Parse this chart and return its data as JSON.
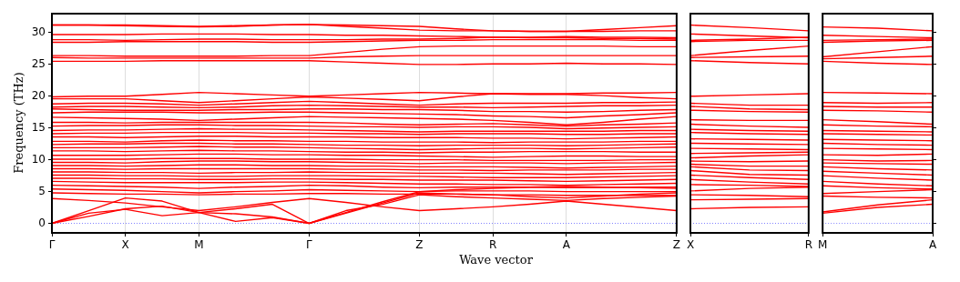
{
  "chart_data": [
    {
      "type": "line",
      "ylabel": "Frequency (THz)",
      "xlabel": "Wave vector",
      "color": "#ff0000",
      "grid": "x",
      "legend": false,
      "marker": "none",
      "line_style": "solid",
      "categories": [
        "Γ",
        null,
        "X",
        null,
        "M",
        null,
        null,
        "Γ",
        null,
        null,
        "Z",
        null,
        "R",
        null,
        "A",
        null,
        null,
        "Z"
      ],
      "ylim": [
        -1.5,
        33
      ],
      "yticks": [
        0,
        5,
        10,
        15,
        20,
        25,
        30
      ],
      "ref_lines": [
        {
          "axis": "y",
          "value": 0,
          "color": "#8080ff",
          "line_style": "dotted"
        }
      ],
      "series": [
        {
          "values": [
            31.2,
            31.2,
            31.1,
            31.0,
            30.9,
            31.0,
            31.2,
            31.3,
            31.2,
            31.1,
            31.0,
            30.6,
            30.3,
            30.2,
            30.2,
            30.5,
            30.8,
            31.1
          ]
        },
        {
          "values": [
            31.2,
            31.2,
            31.2,
            31.1,
            31.0,
            31.1,
            31.2,
            31.3,
            31.0,
            30.7,
            30.4,
            30.3,
            30.3,
            30.2,
            30.2,
            30.2,
            30.3,
            30.3
          ]
        },
        {
          "values": [
            29.7,
            29.7,
            29.7,
            29.8,
            29.8,
            29.8,
            29.7,
            29.7,
            29.6,
            29.6,
            29.5,
            29.4,
            29.3,
            29.3,
            29.4,
            29.3,
            29.3,
            29.2
          ]
        },
        {
          "values": [
            28.9,
            28.9,
            28.8,
            28.9,
            29.0,
            29.0,
            28.9,
            28.9,
            28.9,
            29.0,
            29.0,
            29.1,
            29.3,
            29.2,
            29.2,
            29.1,
            29.1,
            29.0
          ]
        },
        {
          "values": [
            28.5,
            28.5,
            28.6,
            28.6,
            28.6,
            28.6,
            28.5,
            28.5,
            28.6,
            28.7,
            28.8,
            28.8,
            28.9,
            28.9,
            28.9,
            28.9,
            28.8,
            28.8
          ]
        },
        {
          "values": [
            26.4,
            26.4,
            26.3,
            26.3,
            26.3,
            26.3,
            26.4,
            26.4,
            26.9,
            27.4,
            27.8,
            27.9,
            27.9,
            27.9,
            27.9,
            27.9,
            27.8,
            27.8
          ]
        },
        {
          "values": [
            26.1,
            26.0,
            26.0,
            26.0,
            26.0,
            26.0,
            26.0,
            26.0,
            26.2,
            26.3,
            26.4,
            26.4,
            26.4,
            26.4,
            26.4,
            26.4,
            26.4,
            26.4
          ]
        },
        {
          "values": [
            25.5,
            25.5,
            25.5,
            25.6,
            25.6,
            25.6,
            25.6,
            25.6,
            25.4,
            25.2,
            25.0,
            25.0,
            25.1,
            25.1,
            25.2,
            25.1,
            25.1,
            25.0
          ]
        },
        {
          "values": [
            19.9,
            20.0,
            20.0,
            20.3,
            20.6,
            20.4,
            20.2,
            20.0,
            20.2,
            20.4,
            20.6,
            20.5,
            20.4,
            20.4,
            20.4,
            20.5,
            20.5,
            20.6
          ]
        },
        {
          "values": [
            19.6,
            19.6,
            19.6,
            19.3,
            19.0,
            19.3,
            19.6,
            19.9,
            19.7,
            19.5,
            19.3,
            19.9,
            20.4,
            20.3,
            20.3,
            20.1,
            19.8,
            19.6
          ]
        },
        {
          "values": [
            18.8,
            18.9,
            18.9,
            18.8,
            18.6,
            18.8,
            19.0,
            19.2,
            19.0,
            18.8,
            18.6,
            18.8,
            18.9,
            18.9,
            18.9,
            19.0,
            19.0,
            19.1
          ]
        },
        {
          "values": [
            18.3,
            18.4,
            18.4,
            18.3,
            18.2,
            18.3,
            18.5,
            18.6,
            18.5,
            18.4,
            18.3,
            18.3,
            18.2,
            18.3,
            18.4,
            18.5,
            18.5,
            18.6
          ]
        },
        {
          "values": [
            18.0,
            17.9,
            17.8,
            17.8,
            17.8,
            17.9,
            17.9,
            18.0,
            18.0,
            17.9,
            17.9,
            17.8,
            17.6,
            17.6,
            17.5,
            17.6,
            17.8,
            17.9
          ]
        },
        {
          "values": [
            17.4,
            17.5,
            17.5,
            17.5,
            17.4,
            17.4,
            17.5,
            17.5,
            17.4,
            17.3,
            17.2,
            17.1,
            16.9,
            16.8,
            16.6,
            16.9,
            17.1,
            17.4
          ]
        },
        {
          "values": [
            16.7,
            16.6,
            16.5,
            16.4,
            16.2,
            16.4,
            16.6,
            16.8,
            16.7,
            16.6,
            16.5,
            16.4,
            16.2,
            15.9,
            15.5,
            15.9,
            16.4,
            16.8
          ]
        },
        {
          "values": [
            15.9,
            15.9,
            15.8,
            15.9,
            15.9,
            15.9,
            15.9,
            15.9,
            15.8,
            15.6,
            15.5,
            15.6,
            15.7,
            15.5,
            15.3,
            15.5,
            15.6,
            15.8
          ]
        },
        {
          "values": [
            15.3,
            15.4,
            15.4,
            15.5,
            15.5,
            15.4,
            15.4,
            15.3,
            15.2,
            15.2,
            15.1,
            15.2,
            15.2,
            15.1,
            14.9,
            15.0,
            15.1,
            15.2
          ]
        },
        {
          "values": [
            14.6,
            14.7,
            14.7,
            14.8,
            14.9,
            14.8,
            14.8,
            14.7,
            14.6,
            14.5,
            14.4,
            14.5,
            14.5,
            14.5,
            14.5,
            14.5,
            14.6,
            14.6
          ]
        },
        {
          "values": [
            14.1,
            14.2,
            14.2,
            14.3,
            14.3,
            14.3,
            14.2,
            14.2,
            14.1,
            14.1,
            14.0,
            14.1,
            14.1,
            14.1,
            14.0,
            14.0,
            14.1,
            14.1
          ]
        },
        {
          "values": [
            13.6,
            13.6,
            13.5,
            13.6,
            13.7,
            13.7,
            13.6,
            13.6,
            13.6,
            13.5,
            13.5,
            13.5,
            13.4,
            13.4,
            13.3,
            13.4,
            13.5,
            13.6
          ]
        },
        {
          "values": [
            12.9,
            12.9,
            12.8,
            13.0,
            13.1,
            13.0,
            13.0,
            12.9,
            12.9,
            12.8,
            12.8,
            12.8,
            12.7,
            12.8,
            12.8,
            12.8,
            12.9,
            12.9
          ]
        },
        {
          "values": [
            12.4,
            12.5,
            12.5,
            12.6,
            12.6,
            12.5,
            12.5,
            12.4,
            12.3,
            12.3,
            12.2,
            12.3,
            12.3,
            12.3,
            12.2,
            12.3,
            12.4,
            12.5
          ]
        },
        {
          "values": [
            11.9,
            11.9,
            11.9,
            12.0,
            12.1,
            12.0,
            12.0,
            11.9,
            11.8,
            11.7,
            11.6,
            11.7,
            11.8,
            11.8,
            11.7,
            11.8,
            11.9,
            12.0
          ]
        },
        {
          "values": [
            11.4,
            11.4,
            11.3,
            11.4,
            11.5,
            11.4,
            11.4,
            11.3,
            11.2,
            11.2,
            11.1,
            11.2,
            11.2,
            11.3,
            11.3,
            11.3,
            11.2,
            11.2
          ]
        },
        {
          "values": [
            10.7,
            10.7,
            10.7,
            10.8,
            10.9,
            10.9,
            10.8,
            10.8,
            10.7,
            10.7,
            10.6,
            10.5,
            10.4,
            10.5,
            10.6,
            10.6,
            10.5,
            10.5
          ]
        },
        {
          "values": [
            10.1,
            10.1,
            10.1,
            10.2,
            10.2,
            10.2,
            10.1,
            10.1,
            10.1,
            10.0,
            10.0,
            10.0,
            9.9,
            9.9,
            9.9,
            9.9,
            10.0,
            10.0
          ]
        },
        {
          "values": [
            9.6,
            9.6,
            9.5,
            9.7,
            9.8,
            9.8,
            9.7,
            9.7,
            9.6,
            9.5,
            9.4,
            9.5,
            9.5,
            9.5,
            9.4,
            9.5,
            9.5,
            9.6
          ]
        },
        {
          "values": [
            9.1,
            9.1,
            9.0,
            9.1,
            9.2,
            9.2,
            9.1,
            9.1,
            9.0,
            9.0,
            8.9,
            8.9,
            8.9,
            8.8,
            8.7,
            8.8,
            8.9,
            9.0
          ]
        },
        {
          "values": [
            8.6,
            8.6,
            8.5,
            8.6,
            8.6,
            8.6,
            8.6,
            8.6,
            8.5,
            8.5,
            8.4,
            8.4,
            8.3,
            8.4,
            8.4,
            8.4,
            8.5,
            8.5
          ]
        },
        {
          "values": [
            8.1,
            8.1,
            8.0,
            8.0,
            7.9,
            8.0,
            8.0,
            8.1,
            8.0,
            8.0,
            7.9,
            7.9,
            7.9,
            7.8,
            7.7,
            7.8,
            7.9,
            8.0
          ]
        },
        {
          "values": [
            7.6,
            7.6,
            7.5,
            7.5,
            7.4,
            7.4,
            7.5,
            7.5,
            7.5,
            7.4,
            7.4,
            7.3,
            7.2,
            7.2,
            7.2,
            7.3,
            7.4,
            7.5
          ]
        },
        {
          "values": [
            7.1,
            7.1,
            7.0,
            7.0,
            6.9,
            6.9,
            7.0,
            7.0,
            6.9,
            6.9,
            6.8,
            6.8,
            6.8,
            6.7,
            6.6,
            6.7,
            6.8,
            6.9
          ]
        },
        {
          "values": [
            6.6,
            6.5,
            6.4,
            6.4,
            6.4,
            6.4,
            6.5,
            6.5,
            6.4,
            6.3,
            6.2,
            6.2,
            6.1,
            6.1,
            6.0,
            6.1,
            6.2,
            6.3
          ]
        },
        {
          "values": [
            6.0,
            5.9,
            5.8,
            5.7,
            5.5,
            5.7,
            5.8,
            6.0,
            5.9,
            5.7,
            5.6,
            5.7,
            5.7,
            5.7,
            5.6,
            5.6,
            5.7,
            5.7
          ]
        },
        {
          "values": [
            5.4,
            5.3,
            5.2,
            5.0,
            4.8,
            5.0,
            5.1,
            5.3,
            5.2,
            5.1,
            5.0,
            5.1,
            5.1,
            5.1,
            5.0,
            5.0,
            5.0,
            5.0
          ]
        },
        {
          "values": [
            4.8,
            4.7,
            4.6,
            4.6,
            4.5,
            4.6,
            4.6,
            4.7,
            4.7,
            4.6,
            4.6,
            4.6,
            4.5,
            4.5,
            4.4,
            4.4,
            4.4,
            4.4
          ]
        },
        {
          "values": [
            3.9,
            3.6,
            3.2,
            2.6,
            2.0,
            2.6,
            3.3,
            3.9,
            3.3,
            2.6,
            2.0,
            2.3,
            2.6,
            3.0,
            3.5,
            3.0,
            2.5,
            2.0
          ]
        },
        {
          "values": [
            0,
            1.6,
            2.2,
            1.2,
            1.7,
            0.3,
            0.9,
            0,
            2.0,
            3.0,
            4.5,
            4.2,
            4.0,
            3.8,
            3.6,
            3.9,
            4.1,
            4.3
          ]
        },
        {
          "values": [
            0,
            1.1,
            2.3,
            2.7,
            1.7,
            2.3,
            3.0,
            0,
            1.6,
            3.2,
            4.8,
            4.6,
            4.5,
            4.2,
            4.0,
            4.3,
            4.6,
            4.8
          ]
        },
        {
          "values": [
            0,
            2.0,
            4.0,
            3.5,
            1.7,
            1.5,
            1.0,
            0,
            1.7,
            3.4,
            5.0,
            5.3,
            5.5,
            5.7,
            5.8,
            5.7,
            5.6,
            5.5
          ]
        }
      ]
    },
    {
      "type": "line",
      "color": "#ff0000",
      "legend": false,
      "marker": "none",
      "line_style": "solid",
      "tick_labels": "x",
      "categories": [
        "X",
        null,
        "R"
      ],
      "ylim": [
        -1.5,
        33
      ],
      "yticks": [
        0,
        5,
        10,
        15,
        20,
        25,
        30
      ],
      "ref_lines": [
        {
          "axis": "y",
          "value": 0,
          "color": "#8080ff",
          "line_style": "dotted"
        }
      ],
      "series": [
        {
          "values": [
            31.2,
            30.8,
            30.3
          ]
        },
        {
          "values": [
            29.8,
            29.5,
            29.2
          ]
        },
        {
          "values": [
            28.8,
            29.0,
            29.3
          ]
        },
        {
          "values": [
            28.6,
            28.8,
            28.8
          ]
        },
        {
          "values": [
            26.4,
            27.2,
            27.9
          ]
        },
        {
          "values": [
            26.1,
            26.2,
            26.3
          ]
        },
        {
          "values": [
            25.6,
            25.3,
            25.1
          ]
        },
        {
          "values": [
            20.0,
            20.2,
            20.4
          ]
        },
        {
          "values": [
            18.9,
            18.6,
            18.6
          ]
        },
        {
          "values": [
            18.4,
            18.0,
            17.9
          ]
        },
        {
          "values": [
            17.8,
            17.6,
            17.5
          ]
        },
        {
          "values": [
            16.3,
            16.2,
            16.2
          ]
        },
        {
          "values": [
            15.6,
            15.3,
            15.1
          ]
        },
        {
          "values": [
            14.8,
            14.6,
            14.5
          ]
        },
        {
          "values": [
            14.3,
            14.1,
            14.0
          ]
        },
        {
          "values": [
            13.3,
            13.2,
            13.1
          ]
        },
        {
          "values": [
            12.6,
            12.5,
            12.4
          ]
        },
        {
          "values": [
            11.8,
            11.7,
            11.6
          ]
        },
        {
          "values": [
            11.0,
            11.1,
            11.2
          ]
        },
        {
          "values": [
            10.3,
            10.6,
            10.8
          ]
        },
        {
          "values": [
            9.8,
            9.7,
            9.8
          ]
        },
        {
          "values": [
            9.3,
            9.0,
            9.0
          ]
        },
        {
          "values": [
            8.9,
            8.4,
            8.3
          ]
        },
        {
          "values": [
            8.3,
            7.7,
            7.6
          ]
        },
        {
          "values": [
            7.6,
            7.2,
            6.9
          ]
        },
        {
          "values": [
            6.9,
            6.5,
            6.2
          ]
        },
        {
          "values": [
            6.1,
            6.0,
            5.8
          ]
        },
        {
          "values": [
            5.1,
            5.5,
            5.7
          ]
        },
        {
          "values": [
            4.5,
            4.4,
            4.2
          ]
        },
        {
          "values": [
            3.7,
            3.8,
            3.9
          ]
        },
        {
          "values": [
            2.3,
            2.5,
            2.6
          ]
        }
      ]
    },
    {
      "type": "line",
      "color": "#ff0000",
      "legend": false,
      "marker": "none",
      "line_style": "solid",
      "tick_labels": "x",
      "categories": [
        "M",
        null,
        "A"
      ],
      "ylim": [
        -1.5,
        33
      ],
      "yticks": [
        0,
        5,
        10,
        15,
        20,
        25,
        30
      ],
      "ref_lines": [
        {
          "axis": "y",
          "value": 0,
          "color": "#8080ff",
          "line_style": "dotted"
        }
      ],
      "series": [
        {
          "values": [
            30.9,
            30.7,
            30.3
          ]
        },
        {
          "values": [
            29.6,
            29.4,
            29.2
          ]
        },
        {
          "values": [
            28.8,
            28.9,
            29.0
          ]
        },
        {
          "values": [
            28.5,
            28.7,
            28.8
          ]
        },
        {
          "values": [
            26.2,
            27.0,
            27.8
          ]
        },
        {
          "values": [
            25.9,
            26.1,
            26.3
          ]
        },
        {
          "values": [
            25.5,
            25.2,
            25.0
          ]
        },
        {
          "values": [
            20.6,
            20.5,
            20.4
          ]
        },
        {
          "values": [
            19.0,
            18.9,
            19.0
          ]
        },
        {
          "values": [
            18.4,
            18.3,
            18.3
          ]
        },
        {
          "values": [
            17.8,
            17.7,
            17.5
          ]
        },
        {
          "values": [
            16.3,
            16.0,
            15.6
          ]
        },
        {
          "values": [
            15.5,
            15.3,
            15.2
          ]
        },
        {
          "values": [
            14.6,
            14.5,
            14.4
          ]
        },
        {
          "values": [
            14.1,
            14.0,
            13.9
          ]
        },
        {
          "values": [
            13.2,
            13.1,
            13.0
          ]
        },
        {
          "values": [
            12.6,
            12.4,
            12.3
          ]
        },
        {
          "values": [
            11.8,
            11.7,
            11.6
          ]
        },
        {
          "values": [
            10.8,
            10.7,
            10.9
          ]
        },
        {
          "values": [
            10.0,
            9.8,
            9.9
          ]
        },
        {
          "values": [
            9.5,
            9.4,
            9.3
          ]
        },
        {
          "values": [
            8.9,
            8.6,
            8.4
          ]
        },
        {
          "values": [
            8.2,
            7.9,
            7.6
          ]
        },
        {
          "values": [
            7.5,
            7.1,
            6.8
          ]
        },
        {
          "values": [
            6.6,
            6.2,
            5.9
          ]
        },
        {
          "values": [
            5.9,
            5.6,
            5.4
          ]
        },
        {
          "values": [
            4.7,
            5.0,
            5.3
          ]
        },
        {
          "values": [
            4.3,
            4.1,
            4.0
          ]
        },
        {
          "values": [
            1.8,
            2.9,
            3.7
          ]
        },
        {
          "values": [
            1.6,
            2.5,
            3.0
          ]
        }
      ]
    }
  ]
}
